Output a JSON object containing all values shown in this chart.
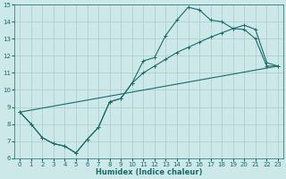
{
  "xlabel": "Humidex (Indice chaleur)",
  "xlim": [
    -0.5,
    23.5
  ],
  "ylim": [
    6,
    15
  ],
  "xticks": [
    0,
    1,
    2,
    3,
    4,
    5,
    6,
    7,
    8,
    9,
    10,
    11,
    12,
    13,
    14,
    15,
    16,
    17,
    18,
    19,
    20,
    21,
    22,
    23
  ],
  "yticks": [
    6,
    7,
    8,
    9,
    10,
    11,
    12,
    13,
    14,
    15
  ],
  "bg_color": "#cce8e8",
  "line_color": "#1a6b6b",
  "grid_color": "#aacccc",
  "line1_x": [
    0,
    1,
    2,
    3,
    4,
    5,
    6,
    7,
    8,
    9,
    10,
    11,
    12,
    13,
    14,
    15,
    16,
    17,
    18,
    19,
    20,
    21,
    22,
    23
  ],
  "line1_y": [
    8.7,
    8.0,
    7.2,
    6.85,
    6.7,
    6.3,
    7.1,
    7.8,
    9.3,
    9.5,
    10.4,
    11.7,
    11.9,
    13.2,
    14.1,
    14.85,
    14.7,
    14.1,
    14.0,
    13.6,
    13.55,
    13.0,
    11.4,
    11.4
  ],
  "line2_x": [
    0,
    1,
    2,
    3,
    4,
    5,
    6,
    7,
    8,
    9,
    10,
    11,
    12,
    13,
    14,
    15,
    16,
    17,
    18,
    19,
    20,
    21,
    22,
    23
  ],
  "line2_y": [
    8.7,
    8.0,
    7.2,
    6.85,
    6.7,
    6.3,
    7.1,
    7.8,
    9.3,
    9.5,
    10.4,
    11.0,
    11.4,
    11.8,
    12.2,
    12.5,
    12.8,
    13.1,
    13.35,
    13.6,
    13.8,
    13.55,
    11.6,
    11.4
  ],
  "line3_x": [
    0,
    23
  ],
  "line3_y": [
    8.7,
    11.4
  ]
}
